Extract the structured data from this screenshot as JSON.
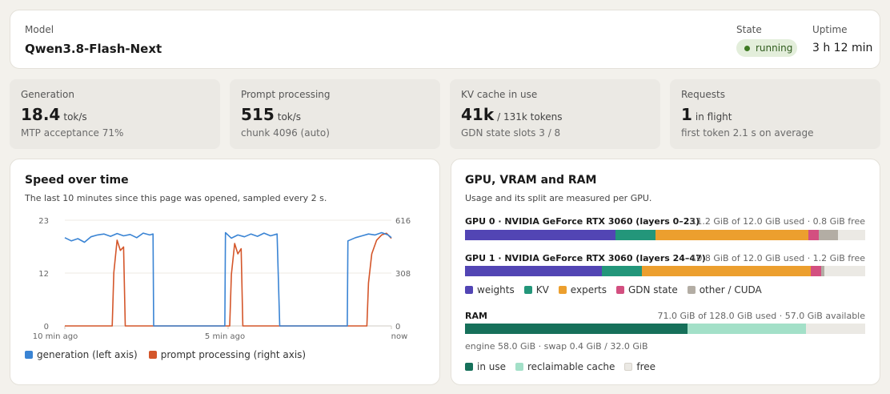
{
  "header": {
    "model_label": "Model",
    "model_name": "Qwen3.8-Flash-Next",
    "state_label": "State",
    "state_value": "running",
    "uptime_label": "Uptime",
    "uptime_value": "3 h 12 min"
  },
  "stats": [
    {
      "label": "Generation",
      "value": "18.4",
      "unit": "tok/s",
      "sub": "MTP acceptance 71%"
    },
    {
      "label": "Prompt processing",
      "value": "515",
      "unit": "tok/s",
      "sub": "chunk 4096 (auto)"
    },
    {
      "label": "KV cache in use",
      "value": "41k",
      "unit": "/ 131k tokens",
      "sub": "GDN state slots 3 / 8"
    },
    {
      "label": "Requests",
      "value": "1",
      "unit": "in flight",
      "sub": "first token 2.1 s on average"
    }
  ],
  "speed": {
    "title": "Speed over time",
    "subtitle": "The last 10 minutes since this page was opened, sampled every 2 s.",
    "legend_generation": "generation (left axis)",
    "legend_prompt": "prompt processing (right axis)"
  },
  "chart_data": {
    "type": "line",
    "x_ticks": [
      "10 min ago",
      "5 min ago",
      "now"
    ],
    "y_left_ticks": [
      "23",
      "12",
      "0"
    ],
    "y_right_ticks": [
      "616",
      "308",
      "0"
    ],
    "ylim_left": [
      0,
      23
    ],
    "ylim_right": [
      0,
      616
    ],
    "x_range_min_ago": [
      10,
      0
    ],
    "grid": true,
    "series": [
      {
        "name": "generation (left axis)",
        "axis": "left",
        "color": "#3a84d4",
        "points": [
          [
            10,
            19.2
          ],
          [
            9.8,
            18.5
          ],
          [
            9.6,
            19.0
          ],
          [
            9.4,
            18.2
          ],
          [
            9.2,
            19.4
          ],
          [
            9.0,
            19.8
          ],
          [
            8.8,
            20.0
          ],
          [
            8.6,
            19.5
          ],
          [
            8.4,
            20.1
          ],
          [
            8.2,
            19.6
          ],
          [
            8.0,
            19.9
          ],
          [
            7.8,
            19.2
          ],
          [
            7.6,
            20.2
          ],
          [
            7.4,
            19.8
          ],
          [
            7.3,
            20.0
          ],
          [
            7.28,
            0
          ],
          [
            5.1,
            0
          ],
          [
            5.08,
            20.3
          ],
          [
            4.9,
            19.1
          ],
          [
            4.7,
            19.8
          ],
          [
            4.5,
            19.4
          ],
          [
            4.3,
            20.0
          ],
          [
            4.1,
            19.5
          ],
          [
            3.9,
            20.2
          ],
          [
            3.7,
            19.6
          ],
          [
            3.5,
            20.0
          ],
          [
            3.42,
            0
          ],
          [
            1.35,
            0
          ],
          [
            1.33,
            18.5
          ],
          [
            1.1,
            19.2
          ],
          [
            0.9,
            19.6
          ],
          [
            0.7,
            20.0
          ],
          [
            0.5,
            19.8
          ],
          [
            0.3,
            20.3
          ],
          [
            0.1,
            19.8
          ],
          [
            0,
            19.2
          ]
        ]
      },
      {
        "name": "prompt processing (right axis)",
        "axis": "right",
        "color": "#d4562a",
        "points": [
          [
            10,
            0
          ],
          [
            8.55,
            0
          ],
          [
            8.5,
            310
          ],
          [
            8.4,
            500
          ],
          [
            8.3,
            440
          ],
          [
            8.2,
            460
          ],
          [
            8.15,
            0
          ],
          [
            4.95,
            0
          ],
          [
            4.9,
            300
          ],
          [
            4.8,
            480
          ],
          [
            4.7,
            420
          ],
          [
            4.6,
            450
          ],
          [
            4.55,
            0
          ],
          [
            0.75,
            0
          ],
          [
            0.7,
            250
          ],
          [
            0.6,
            420
          ],
          [
            0.45,
            500
          ],
          [
            0.3,
            530
          ],
          [
            0.15,
            540
          ],
          [
            0,
            510
          ]
        ]
      }
    ]
  },
  "gpu": {
    "title": "GPU, VRAM and RAM",
    "subtitle": "Usage and its split are measured per GPU.",
    "gpus": [
      {
        "name": "GPU 0 · NVIDIA GeForce RTX 3060 (layers 0–23)",
        "usage": "11.2 GiB of 12.0 GiB used · 0.8 GiB free",
        "segments": [
          {
            "kind": "weights",
            "fraction": 0.376,
            "color": "#5245b4"
          },
          {
            "kind": "KV",
            "fraction": 0.1,
            "color": "#23967a"
          },
          {
            "kind": "experts",
            "fraction": 0.382,
            "color": "#ec9f2e"
          },
          {
            "kind": "GDN state",
            "fraction": 0.026,
            "color": "#d34f80"
          },
          {
            "kind": "other / CUDA",
            "fraction": 0.048,
            "color": "#b3ada4"
          }
        ]
      },
      {
        "name": "GPU 1 · NVIDIA GeForce RTX 3060 (layers 24–47)",
        "usage": "10.8 GiB of 12.0 GiB used · 1.2 GiB free",
        "segments": [
          {
            "kind": "weights",
            "fraction": 0.342,
            "color": "#5245b4"
          },
          {
            "kind": "KV",
            "fraction": 0.1,
            "color": "#23967a"
          },
          {
            "kind": "experts",
            "fraction": 0.422,
            "color": "#ec9f2e"
          },
          {
            "kind": "GDN state",
            "fraction": 0.026,
            "color": "#d34f80"
          },
          {
            "kind": "other / CUDA",
            "fraction": 0.008,
            "color": "#b3ada4"
          }
        ]
      }
    ],
    "legend": [
      {
        "label": "weights",
        "color": "#5245b4"
      },
      {
        "label": "KV",
        "color": "#23967a"
      },
      {
        "label": "experts",
        "color": "#ec9f2e"
      },
      {
        "label": "GDN state",
        "color": "#d34f80"
      },
      {
        "label": "other / CUDA",
        "color": "#b3ada4"
      }
    ],
    "ram": {
      "title": "RAM",
      "usage": "71.0 GiB of 128.0 GiB used · 57.0 GiB available",
      "in_use_fraction": 0.555,
      "reclaimable_fraction": 0.297,
      "in_use_color": "#16705a",
      "reclaimable_color": "#a3e0c8",
      "detail": "engine 58.0 GiB · swap 0.4 GiB / 32.0 GiB",
      "legend": [
        {
          "label": "in use",
          "color": "#16705a"
        },
        {
          "label": "reclaimable cache",
          "color": "#a3e0c8"
        },
        {
          "label": "free",
          "color": "#ebe9e4"
        }
      ]
    }
  }
}
